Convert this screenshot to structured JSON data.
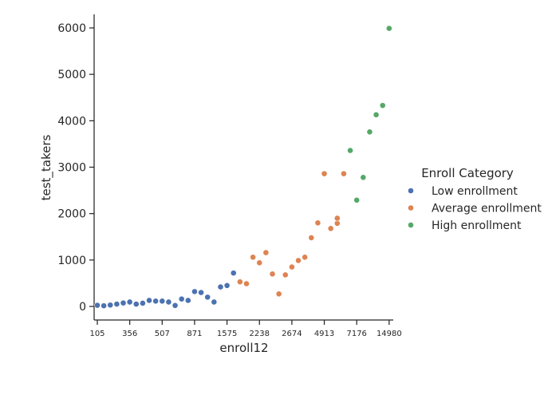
{
  "chart_data": {
    "type": "scatter",
    "xlabel": "enroll12",
    "ylabel": "test_takers",
    "ylim": [
      -250,
      6300
    ],
    "y_ticks": [
      0,
      1000,
      2000,
      3000,
      4000,
      5000,
      6000
    ],
    "x_is_categorical_ordered": true,
    "x_tick_labels": [
      "105",
      "356",
      "507",
      "871",
      "1575",
      "2238",
      "2674",
      "4913",
      "7176",
      "14980"
    ],
    "legend": {
      "title": "Enroll Category",
      "placement": "center-right",
      "entries": [
        {
          "name": "Low enrollment",
          "color": "#4c72b0"
        },
        {
          "name": "Average enrollment",
          "color": "#dd8452"
        },
        {
          "name": "High enrollment",
          "color": "#55a868"
        }
      ]
    },
    "grid": false,
    "series": [
      {
        "name": "Low enrollment",
        "color": "#4c72b0",
        "points": [
          {
            "x": 0,
            "y": 25
          },
          {
            "x": 1,
            "y": 15
          },
          {
            "x": 2,
            "y": 30
          },
          {
            "x": 3,
            "y": 50
          },
          {
            "x": 4,
            "y": 75
          },
          {
            "x": 5,
            "y": 95
          },
          {
            "x": 6,
            "y": 50
          },
          {
            "x": 7,
            "y": 70
          },
          {
            "x": 8,
            "y": 130
          },
          {
            "x": 9,
            "y": 115
          },
          {
            "x": 10,
            "y": 115
          },
          {
            "x": 11,
            "y": 95
          },
          {
            "x": 12,
            "y": 20
          },
          {
            "x": 13,
            "y": 160
          },
          {
            "x": 14,
            "y": 130
          },
          {
            "x": 15,
            "y": 320
          },
          {
            "x": 16,
            "y": 300
          },
          {
            "x": 17,
            "y": 200
          },
          {
            "x": 18,
            "y": 95
          },
          {
            "x": 19,
            "y": 420
          },
          {
            "x": 20,
            "y": 450
          },
          {
            "x": 21,
            "y": 720
          }
        ]
      },
      {
        "name": "Average enrollment",
        "color": "#dd8452",
        "points": [
          {
            "x": 22,
            "y": 530
          },
          {
            "x": 23,
            "y": 490
          },
          {
            "x": 24,
            "y": 1060
          },
          {
            "x": 25,
            "y": 940
          },
          {
            "x": 26,
            "y": 1160
          },
          {
            "x": 27,
            "y": 700
          },
          {
            "x": 28,
            "y": 270
          },
          {
            "x": 29,
            "y": 680
          },
          {
            "x": 30,
            "y": 850
          },
          {
            "x": 31,
            "y": 990
          },
          {
            "x": 32,
            "y": 1060
          },
          {
            "x": 33,
            "y": 1480
          },
          {
            "x": 34,
            "y": 1800
          },
          {
            "x": 35,
            "y": 2860
          },
          {
            "x": 36,
            "y": 1680
          },
          {
            "x": 37,
            "y": 1790
          },
          {
            "x": 37,
            "y": 1900
          },
          {
            "x": 38,
            "y": 2860
          }
        ]
      },
      {
        "name": "High enrollment",
        "color": "#55a868",
        "points": [
          {
            "x": 39,
            "y": 3360
          },
          {
            "x": 40,
            "y": 2290
          },
          {
            "x": 41,
            "y": 2780
          },
          {
            "x": 42,
            "y": 3760
          },
          {
            "x": 43,
            "y": 4130
          },
          {
            "x": 44,
            "y": 4330
          },
          {
            "x": 45,
            "y": 5990
          }
        ]
      }
    ]
  }
}
